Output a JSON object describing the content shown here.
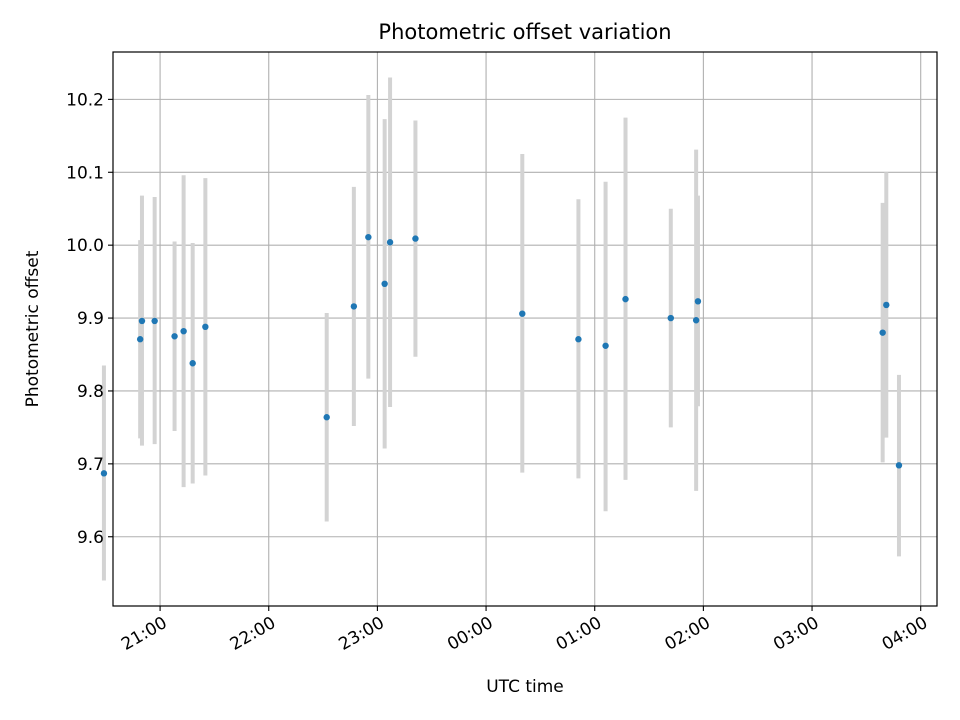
{
  "chart_data": {
    "type": "scatter",
    "title": "Photometric offset variation",
    "xlabel": "UTC time",
    "ylabel": "Photometric offset",
    "grid": true,
    "x_is_time": true,
    "x_start_date": "",
    "xlim": [
      "20:34",
      "04:09"
    ],
    "ylim": [
      9.505,
      10.265
    ],
    "x_ticks": [
      "21:00",
      "22:00",
      "23:00",
      "00:00",
      "01:00",
      "02:00",
      "03:00",
      "04:00"
    ],
    "y_ticks": [
      9.6,
      9.7,
      9.8,
      9.9,
      10.0,
      10.1,
      10.2
    ],
    "y_tick_labels": [
      "9.6",
      "9.7",
      "9.8",
      "9.9",
      "10.0",
      "10.1",
      "10.2"
    ],
    "colors": {
      "marker": "#1f77b4",
      "errorbar": "#d3d3d3",
      "grid": "#b0b0b0"
    },
    "points": [
      {
        "time": "20:29",
        "value": 9.687,
        "lower": 9.54,
        "upper": 9.835
      },
      {
        "time": "20:49",
        "value": 9.871,
        "lower": 9.735,
        "upper": 10.007
      },
      {
        "time": "20:50",
        "value": 9.896,
        "lower": 9.725,
        "upper": 10.068
      },
      {
        "time": "20:57",
        "value": 9.896,
        "lower": 9.727,
        "upper": 10.066
      },
      {
        "time": "21:08",
        "value": 9.875,
        "lower": 9.745,
        "upper": 10.005
      },
      {
        "time": "21:13",
        "value": 9.882,
        "lower": 9.668,
        "upper": 10.096
      },
      {
        "time": "21:18",
        "value": 9.838,
        "lower": 9.673,
        "upper": 10.003
      },
      {
        "time": "21:25",
        "value": 9.888,
        "lower": 9.684,
        "upper": 10.092
      },
      {
        "time": "22:32",
        "value": 9.764,
        "lower": 9.621,
        "upper": 9.907
      },
      {
        "time": "22:47",
        "value": 9.916,
        "lower": 9.752,
        "upper": 10.08
      },
      {
        "time": "22:55",
        "value": 10.011,
        "lower": 9.817,
        "upper": 10.206
      },
      {
        "time": "23:04",
        "value": 9.947,
        "lower": 9.721,
        "upper": 10.173
      },
      {
        "time": "23:07",
        "value": 10.004,
        "lower": 9.778,
        "upper": 10.23
      },
      {
        "time": "23:21",
        "value": 10.009,
        "lower": 9.847,
        "upper": 10.171
      },
      {
        "time": "00:20",
        "value": 9.906,
        "lower": 9.688,
        "upper": 10.125
      },
      {
        "time": "00:51",
        "value": 9.871,
        "lower": 9.68,
        "upper": 10.063
      },
      {
        "time": "01:06",
        "value": 9.862,
        "lower": 9.635,
        "upper": 10.087
      },
      {
        "time": "01:17",
        "value": 9.926,
        "lower": 9.678,
        "upper": 10.175
      },
      {
        "time": "01:42",
        "value": 9.9,
        "lower": 9.75,
        "upper": 10.05
      },
      {
        "time": "01:56",
        "value": 9.897,
        "lower": 9.663,
        "upper": 10.131
      },
      {
        "time": "01:57",
        "value": 9.923,
        "lower": 9.779,
        "upper": 10.068
      },
      {
        "time": "03:39",
        "value": 9.88,
        "lower": 9.702,
        "upper": 10.058
      },
      {
        "time": "03:41",
        "value": 9.918,
        "lower": 9.736,
        "upper": 10.1
      },
      {
        "time": "03:48",
        "value": 9.698,
        "lower": 9.573,
        "upper": 9.822
      }
    ]
  }
}
